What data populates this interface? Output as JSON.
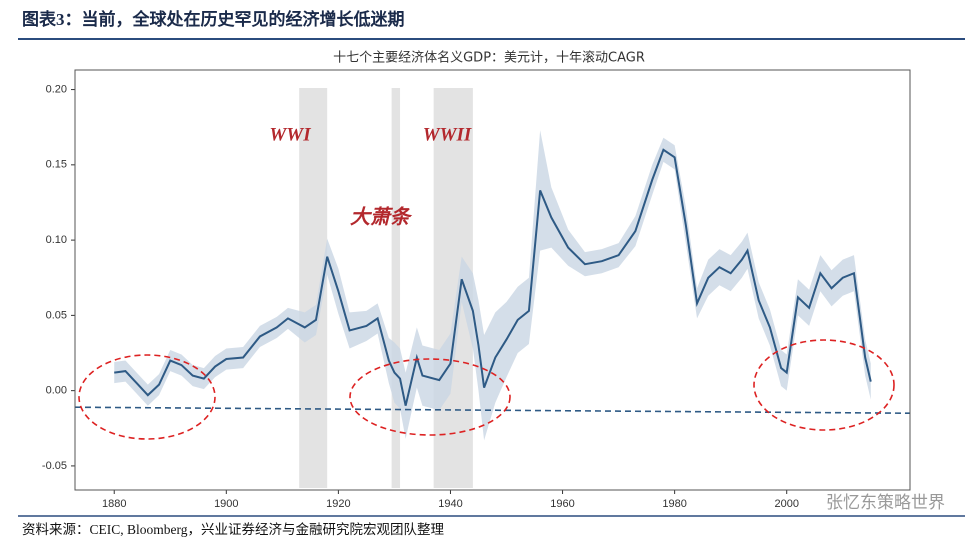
{
  "header": {
    "title": "图表3：当前，全球处在历史罕见的经济增长低迷期"
  },
  "chart_data": {
    "type": "line",
    "title": "十七个主要经济体名义GDP：美元计，十年滚动CAGR",
    "x": [
      1880,
      1882,
      1884,
      1886,
      1888,
      1890,
      1892,
      1894,
      1896,
      1898,
      1900,
      1903,
      1906,
      1909,
      1911,
      1914,
      1916,
      1918,
      1920,
      1922,
      1925,
      1927,
      1929,
      1930,
      1931,
      1932,
      1934,
      1935,
      1938,
      1940,
      1942,
      1944,
      1945,
      1946,
      1948,
      1950,
      1952,
      1954,
      1956,
      1958,
      1961,
      1964,
      1967,
      1970,
      1973,
      1976,
      1978,
      1980,
      1982,
      1984,
      1986,
      1988,
      1990,
      1992,
      1993,
      1995,
      1997,
      1999,
      2000,
      2002,
      2004,
      2006,
      2008,
      2010,
      2012,
      2013,
      2014,
      2015
    ],
    "series": [
      {
        "color": "#2e5a85",
        "band_color": "#c9d6e3",
        "values": [
          0.012,
          0.013,
          0.005,
          -0.003,
          0.004,
          0.02,
          0.017,
          0.01,
          0.008,
          0.016,
          0.021,
          0.022,
          0.036,
          0.042,
          0.048,
          0.042,
          0.047,
          0.089,
          0.066,
          0.04,
          0.043,
          0.048,
          0.02,
          0.012,
          0.008,
          -0.01,
          0.022,
          0.01,
          0.007,
          0.018,
          0.074,
          0.053,
          0.03,
          0.002,
          0.022,
          0.034,
          0.047,
          0.053,
          0.133,
          0.115,
          0.095,
          0.084,
          0.086,
          0.09,
          0.106,
          0.14,
          0.16,
          0.155,
          0.11,
          0.058,
          0.075,
          0.082,
          0.078,
          0.087,
          0.093,
          0.06,
          0.042,
          0.015,
          0.012,
          0.062,
          0.055,
          0.078,
          0.068,
          0.075,
          0.078,
          0.05,
          0.022,
          0.006
        ],
        "lower": [
          0.005,
          0.006,
          -0.002,
          -0.01,
          -0.003,
          0.013,
          0.01,
          0.003,
          0.001,
          0.009,
          0.014,
          0.015,
          0.029,
          0.035,
          0.041,
          0.032,
          0.037,
          0.077,
          0.051,
          0.028,
          0.033,
          0.038,
          0.005,
          -0.008,
          -0.012,
          -0.032,
          0.002,
          -0.01,
          -0.013,
          -0.002,
          0.059,
          0.028,
          0.0,
          -0.033,
          -0.008,
          0.009,
          0.025,
          0.031,
          0.093,
          0.095,
          0.083,
          0.076,
          0.078,
          0.082,
          0.096,
          0.13,
          0.152,
          0.147,
          0.098,
          0.048,
          0.063,
          0.07,
          0.066,
          0.075,
          0.081,
          0.048,
          0.03,
          0.003,
          0.0,
          0.05,
          0.043,
          0.066,
          0.056,
          0.063,
          0.066,
          0.038,
          0.01,
          -0.006
        ],
        "upper": [
          0.019,
          0.02,
          0.012,
          0.004,
          0.011,
          0.027,
          0.024,
          0.017,
          0.015,
          0.023,
          0.028,
          0.029,
          0.043,
          0.049,
          0.055,
          0.052,
          0.057,
          0.101,
          0.081,
          0.052,
          0.053,
          0.058,
          0.035,
          0.032,
          0.028,
          0.012,
          0.042,
          0.03,
          0.027,
          0.038,
          0.089,
          0.078,
          0.06,
          0.037,
          0.052,
          0.059,
          0.069,
          0.075,
          0.173,
          0.135,
          0.107,
          0.092,
          0.094,
          0.098,
          0.116,
          0.15,
          0.168,
          0.163,
          0.122,
          0.068,
          0.087,
          0.094,
          0.09,
          0.099,
          0.105,
          0.072,
          0.054,
          0.027,
          0.024,
          0.074,
          0.067,
          0.09,
          0.08,
          0.087,
          0.09,
          0.062,
          0.034,
          0.018
        ]
      }
    ],
    "trend": {
      "color": "#2e5a85",
      "x": [
        1873,
        2022
      ],
      "values": [
        -0.011,
        -0.015
      ]
    },
    "spans": [
      {
        "x": [
          1913,
          1918
        ]
      },
      {
        "x": [
          1929.5,
          1931
        ]
      },
      {
        "x": [
          1937,
          1944
        ]
      }
    ],
    "annotations": [
      "WWI",
      "WWII",
      "大萧条"
    ],
    "xlim": [
      1873,
      2022
    ],
    "ylim": [
      -0.066,
      0.213
    ],
    "xticks": [
      1880,
      1900,
      1920,
      1940,
      1960,
      1980,
      2000
    ],
    "yticks": [
      -0.05,
      {
        "value": 0,
        "label": "0.00"
      },
      0.05,
      {
        "value": 0.1,
        "label": "0.10"
      },
      0.15,
      {
        "value": 0.2,
        "label": "0.20"
      }
    ]
  },
  "watermark": "张忆东策略世界",
  "footer": {
    "source": "资料来源：CEIC, Bloomberg，兴业证券经济与金融研究院宏观团队整理"
  }
}
